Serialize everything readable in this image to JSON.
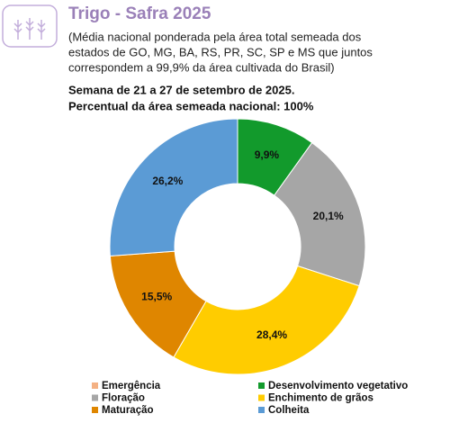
{
  "chart_data": {
    "type": "donut",
    "title": "Trigo - Safra 2025",
    "subtitle": [
      "(Média nacional ponderada pela área total semeada dos",
      "estados de GO, MG, BA, RS, PR, SC, SP e MS que juntos",
      "correspondem a 99,9% da área cultivada do Brasil)"
    ],
    "header": [
      "Semana de 21 a 27 de setembro de 2025.",
      "Percentual da área semeada nacional: 100%"
    ],
    "categories": [
      "Emergência",
      "Desenvolvimento vegetativo",
      "Floração",
      "Enchimento de grãos",
      "Maturação",
      "Colheita"
    ],
    "values": [
      0,
      9.9,
      20.1,
      28.4,
      15.5,
      26.2
    ],
    "value_labels": [
      null,
      "9,9%",
      "20,1%",
      "28,4%",
      "15,5%",
      "26,2%"
    ],
    "colors": [
      "#f4b183",
      "#129a2c",
      "#a6a6a6",
      "#ffcc00",
      "#df8600",
      "#5b9bd5"
    ]
  }
}
